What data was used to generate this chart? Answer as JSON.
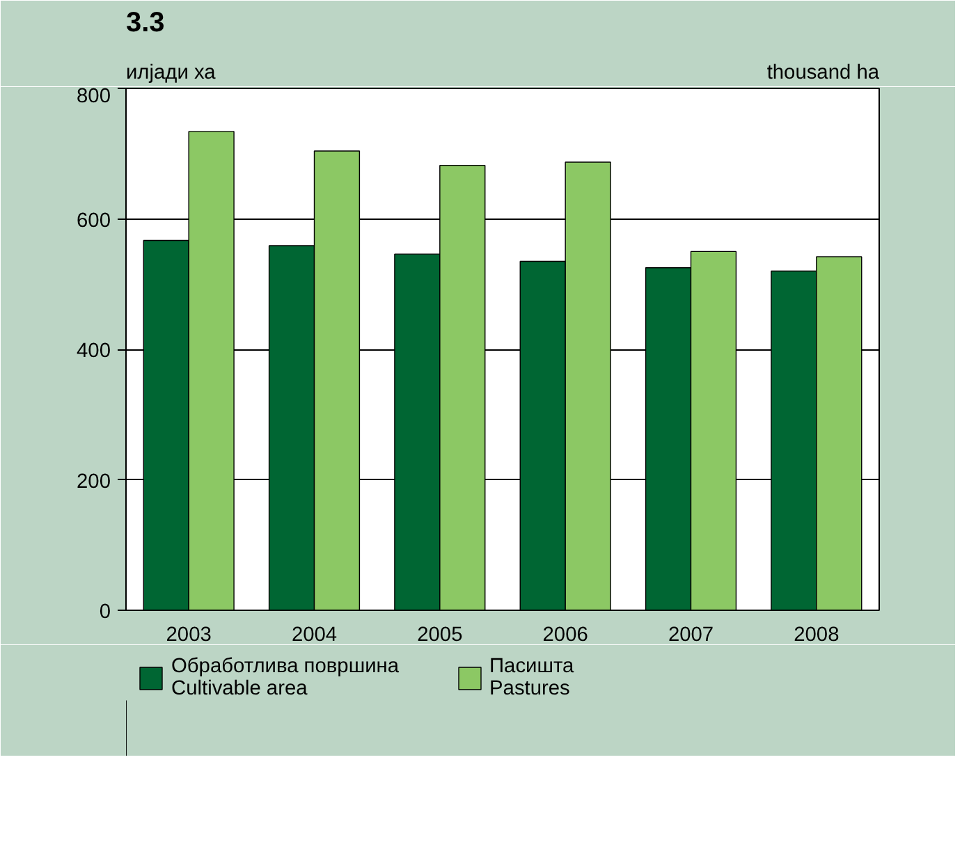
{
  "chart_data": {
    "type": "bar",
    "title": "3.3",
    "ylabel": "илјади ха",
    "y2label": "thousand ha",
    "categories": [
      "2003",
      "2004",
      "2005",
      "2006",
      "2007",
      "2008"
    ],
    "series": [
      {
        "name": "Обработлива површина\nCultivable area",
        "color": "#006633",
        "values": [
          567,
          559,
          546,
          535,
          525,
          520
        ]
      },
      {
        "name": "Пасишта\nPastures",
        "color": "#8cc864",
        "values": [
          734,
          704,
          682,
          687,
          550,
          542
        ]
      }
    ],
    "ylim": [
      0,
      800
    ],
    "yticks": [
      0,
      200,
      400,
      600,
      800
    ],
    "grid": "y",
    "legend": "bottom"
  }
}
